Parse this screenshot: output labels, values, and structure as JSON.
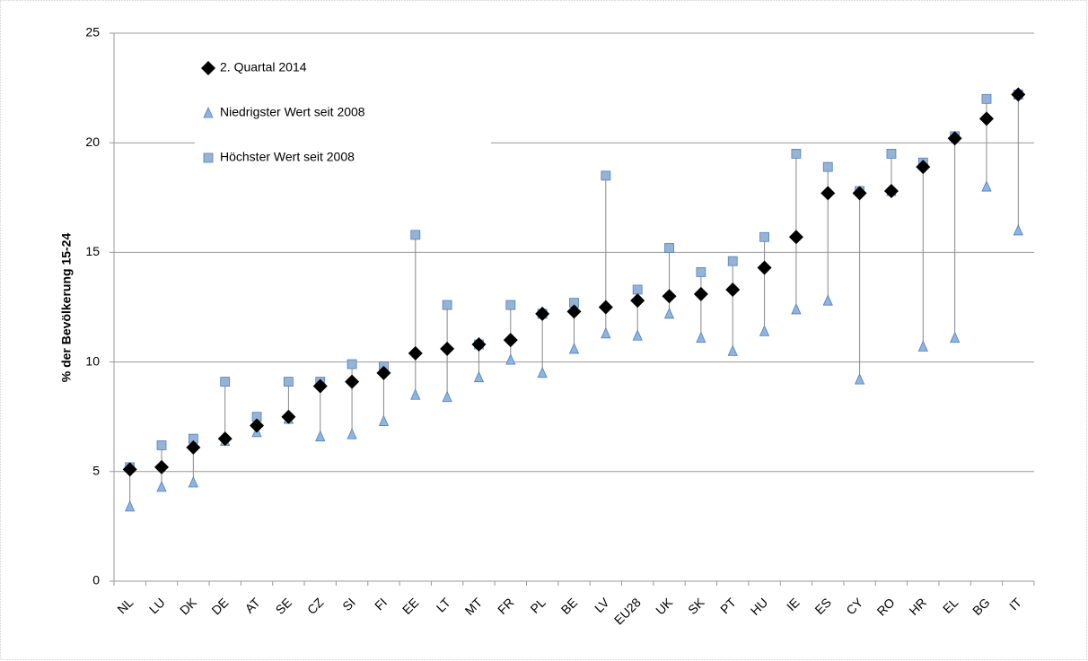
{
  "chart_data": {
    "type": "dot",
    "y_label": "% der Bevölkerung 15-24",
    "categories": [
      "NL",
      "LU",
      "DK",
      "DE",
      "AT",
      "SE",
      "CZ",
      "SI",
      "FI",
      "EE",
      "LT",
      "MT",
      "FR",
      "PL",
      "BE",
      "LV",
      "EU28",
      "UK",
      "SK",
      "PT",
      "HU",
      "IE",
      "ES",
      "CY",
      "RO",
      "HR",
      "EL",
      "BG",
      "IT"
    ],
    "series": [
      {
        "name": "2. Quartal 2014",
        "color": "#000000",
        "marker": "diamond",
        "values": [
          5.1,
          5.2,
          6.1,
          6.5,
          7.1,
          7.5,
          8.9,
          9.1,
          9.5,
          10.4,
          10.6,
          10.8,
          11.0,
          12.2,
          12.3,
          12.5,
          12.8,
          13.0,
          13.1,
          13.3,
          14.3,
          15.7,
          17.7,
          17.7,
          17.8,
          18.9,
          20.2,
          21.1,
          22.2
        ]
      },
      {
        "name": "Niedrigster Wert seit 2008",
        "color": "#8db4e2",
        "marker": "triangle",
        "values": [
          3.4,
          4.3,
          4.5,
          6.4,
          6.8,
          7.4,
          6.6,
          6.7,
          7.3,
          8.5,
          8.4,
          9.3,
          10.1,
          9.5,
          10.6,
          11.3,
          11.2,
          12.2,
          11.1,
          10.5,
          11.4,
          12.4,
          12.8,
          9.2,
          17.8,
          10.7,
          11.1,
          18.0,
          16.0
        ]
      },
      {
        "name": "Höchster Wert seit 2008",
        "color": "#95b3d7",
        "marker": "square",
        "values": [
          5.2,
          6.2,
          6.5,
          9.1,
          7.5,
          9.1,
          9.1,
          9.9,
          9.8,
          15.8,
          12.6,
          10.8,
          12.6,
          12.2,
          12.7,
          18.5,
          13.3,
          15.2,
          14.1,
          14.6,
          15.7,
          19.5,
          18.9,
          17.8,
          19.5,
          19.1,
          20.3,
          22.0,
          22.2
        ]
      }
    ],
    "ylim": [
      0,
      25
    ],
    "yticks": [
      0,
      5,
      10,
      15,
      20,
      25
    ],
    "grid": true,
    "legend": "top-left"
  }
}
